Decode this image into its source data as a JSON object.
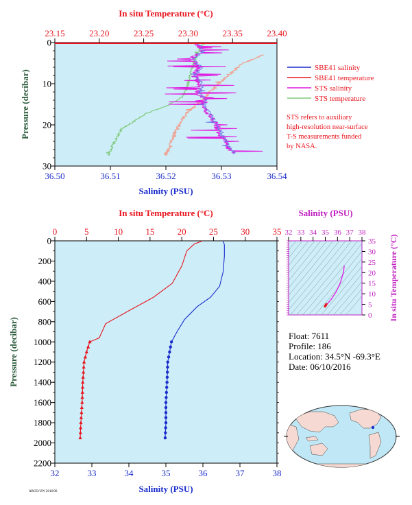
{
  "colors": {
    "plot_bg": "#cdeef8",
    "temperature": "#e8141e",
    "salinity": "#1a2ccc",
    "sts_salinity": "#e019e0",
    "sts_temperature": "#7fc97a",
    "sts_temp_ghost": "#f0a090",
    "pressure_axis": "#2a5a3a",
    "black": "#000000"
  },
  "chart_data": [
    {
      "type": "line",
      "name": "near-surface",
      "title_top": "In situ Temperature (°C)",
      "top_ticks": [
        "23.15",
        "23.20",
        "23.25",
        "23.30",
        "23.35",
        "23.40"
      ],
      "top_range": [
        23.15,
        23.4
      ],
      "xlabel": "Salinity (PSU)",
      "bottom_ticks": [
        "36.50",
        "36.51",
        "36.52",
        "36.53",
        "36.54"
      ],
      "bottom_range": [
        36.5,
        36.54
      ],
      "ylabel": "Pressure (decibar)",
      "y_ticks": [
        "0",
        "10",
        "20",
        "30"
      ],
      "y_range": [
        0,
        30
      ],
      "legend": {
        "placement": "right",
        "items": [
          {
            "label": "SBE41 salinity",
            "color": "#1a2ccc"
          },
          {
            "label": "SBE41 temperature",
            "color": "#e8141e"
          },
          {
            "label": "STS salinity",
            "color": "#e019e0"
          },
          {
            "label": "STS temperature",
            "color": "#7fc97a"
          }
        ]
      },
      "note": [
        "STS refers to auxiliary",
        "high-resolution near-surface",
        "T-S measurements funded",
        "by NASA."
      ],
      "series": {
        "sts_salinity": {
          "x": [
            36.5255,
            36.5265,
            36.5245,
            36.526,
            36.525,
            36.5262,
            36.5258,
            36.5268,
            36.527,
            36.528,
            36.529,
            36.5305,
            36.532
          ],
          "y": [
            0,
            2,
            4,
            6,
            8,
            10,
            12,
            14,
            16,
            18,
            20,
            24,
            27
          ]
        },
        "sts_temperature": {
          "t": [
            23.318,
            23.312,
            23.308,
            23.305,
            23.302,
            23.3,
            23.295,
            23.275,
            23.255,
            23.24,
            23.225,
            23.22,
            23.215,
            23.21
          ],
          "y": [
            0,
            2,
            4,
            6,
            8,
            10,
            13,
            15.5,
            17,
            19,
            21,
            23,
            25,
            27.5
          ]
        },
        "sbe41_temperature_ghost": {
          "t": [
            23.385,
            23.362,
            23.345,
            23.335,
            23.325,
            23.31,
            23.295,
            23.29,
            23.285,
            23.28,
            23.275
          ],
          "y": [
            3,
            5,
            8,
            10,
            12,
            15,
            18,
            20,
            22,
            25,
            27.5
          ]
        }
      }
    },
    {
      "type": "line",
      "name": "full-profile",
      "title_top": "In situ Temperature (°C)",
      "top_ticks": [
        "0",
        "5",
        "10",
        "15",
        "20",
        "25",
        "30",
        "35"
      ],
      "top_range": [
        0,
        35
      ],
      "xlabel": "Salinity (PSU)",
      "bottom_ticks": [
        "32",
        "33",
        "34",
        "35",
        "36",
        "37",
        "38"
      ],
      "bottom_range": [
        32,
        38
      ],
      "ylabel": "Pressure (decibar)",
      "y_ticks": [
        "0",
        "200",
        "400",
        "600",
        "800",
        "1000",
        "1200",
        "1400",
        "1600",
        "1800",
        "2000",
        "2200"
      ],
      "y_range": [
        0,
        2200
      ],
      "series": [
        {
          "quantity": "salinity",
          "x": [
            36.55,
            36.58,
            36.58,
            36.55,
            36.45,
            36.2,
            35.85,
            35.5,
            35.3,
            35.15,
            35.1,
            35.05,
            35.03,
            35.0,
            35.0,
            34.98
          ],
          "y": [
            0,
            40,
            150,
            300,
            450,
            560,
            650,
            780,
            900,
            1000,
            1100,
            1200,
            1400,
            1600,
            1800,
            1950
          ]
        },
        {
          "quantity": "temperature",
          "x": [
            23.3,
            22.0,
            20.8,
            20.0,
            18.5,
            15.5,
            12.0,
            8.0,
            7.0,
            5.5,
            5.0,
            4.6,
            4.4,
            4.3,
            4.1,
            4.0
          ],
          "y": [
            0,
            30,
            100,
            250,
            420,
            560,
            680,
            820,
            960,
            1000,
            1100,
            1200,
            1400,
            1600,
            1800,
            1950
          ]
        }
      ]
    },
    {
      "type": "line",
      "name": "t-s-diagram",
      "title_top": "Salinity (PSU)",
      "top_ticks": [
        "32",
        "33",
        "34",
        "35",
        "36",
        "37",
        "38"
      ],
      "top_range": [
        32,
        38
      ],
      "ylabel": "In situ Temperature (°C)",
      "y_ticks": [
        "0",
        "5",
        "10",
        "15",
        "20",
        "25",
        "30",
        "35"
      ],
      "y_range": [
        0,
        35
      ],
      "series": [
        {
          "s": [
            36.55,
            36.5,
            36.25,
            35.9,
            35.5,
            35.2,
            35.08,
            35.02,
            34.98
          ],
          "t": [
            23.3,
            20.5,
            15.5,
            11.0,
            7.5,
            5.5,
            4.8,
            4.3,
            4.0
          ]
        }
      ]
    }
  ],
  "float_info": {
    "float": "Float:  7611",
    "profile": "Profile:  186",
    "location": "Location:  34.5°N  -69.3°E",
    "date": "Date:  06/10/2016"
  },
  "footer": "ARGO/UW 2016/06"
}
